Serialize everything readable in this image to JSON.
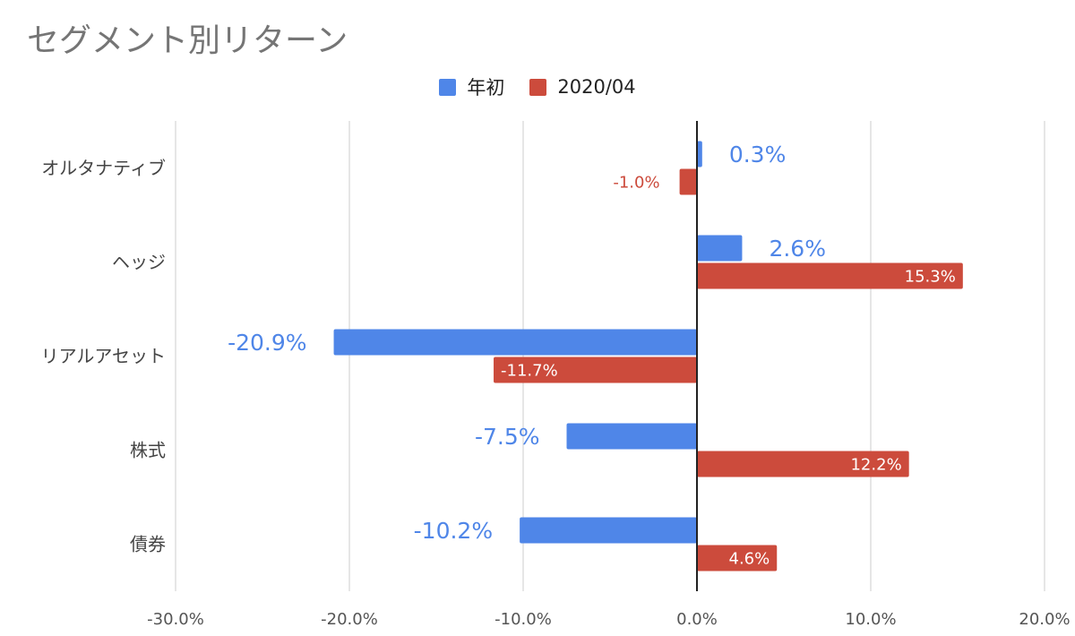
{
  "chart_data": {
    "type": "bar",
    "orientation": "horizontal",
    "title": "セグメント別リターン",
    "categories": [
      "オルタナティブ",
      "ヘッジ",
      "リアルアセット",
      "株式",
      "債券"
    ],
    "series": [
      {
        "name": "年初",
        "color": "#4f86e8",
        "values": [
          0.3,
          2.6,
          -20.9,
          -7.5,
          -10.2
        ],
        "labels": [
          "0.3%",
          "2.6%",
          "-20.9%",
          "-7.5%",
          "-10.2%"
        ]
      },
      {
        "name": "2020/04",
        "color": "#cc4b3c",
        "values": [
          -1.0,
          15.3,
          -11.7,
          12.2,
          4.6
        ],
        "labels": [
          "-1.0%",
          "15.3%",
          "-11.7%",
          "12.2%",
          "4.6%"
        ]
      }
    ],
    "xlim": [
      -30,
      20
    ],
    "xticks": [
      -30,
      -20,
      -10,
      0,
      10,
      20
    ],
    "xtick_labels": [
      "-30.0%",
      "-20.0%",
      "-10.0%",
      "0.0%",
      "10.0%",
      "20.0%"
    ],
    "grid": true,
    "legend_position": "top"
  }
}
